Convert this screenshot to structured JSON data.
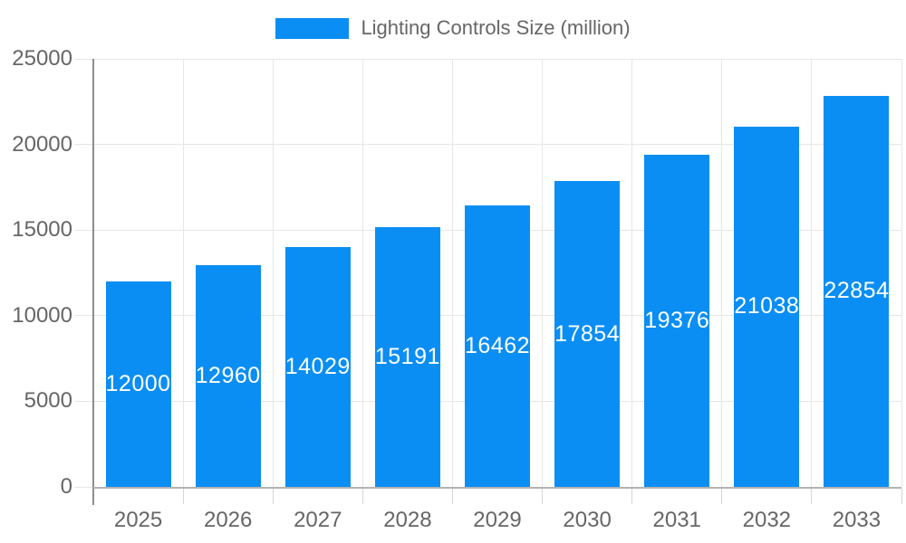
{
  "legend": {
    "series_label": "Lighting Controls Size (million)"
  },
  "chart_data": {
    "type": "bar",
    "title": "Lighting Controls Size (million)",
    "categories": [
      "2025",
      "2026",
      "2027",
      "2028",
      "2029",
      "2030",
      "2031",
      "2032",
      "2033"
    ],
    "series": [
      {
        "name": "Lighting Controls Size (million)",
        "values": [
          12000,
          12960,
          14029,
          15191,
          16462,
          17854,
          19376,
          21038,
          22854
        ]
      }
    ],
    "xlabel": "",
    "ylabel": "",
    "ylim": [
      0,
      25000
    ],
    "yticks": [
      0,
      5000,
      10000,
      15000,
      20000,
      25000
    ],
    "grid": true,
    "legend_position": "top-center",
    "value_labels": {
      "visible": true,
      "position": "center-of-bar"
    },
    "colors": {
      "bar": "#0a8ef4",
      "value_label": "#ffffff",
      "axis_text": "#666666",
      "gridline": "#e6e6e6",
      "y_axis_line": "#8e8e8e",
      "x_axis_line": "#b3b3b3",
      "tick": "#d6d6d6"
    }
  }
}
